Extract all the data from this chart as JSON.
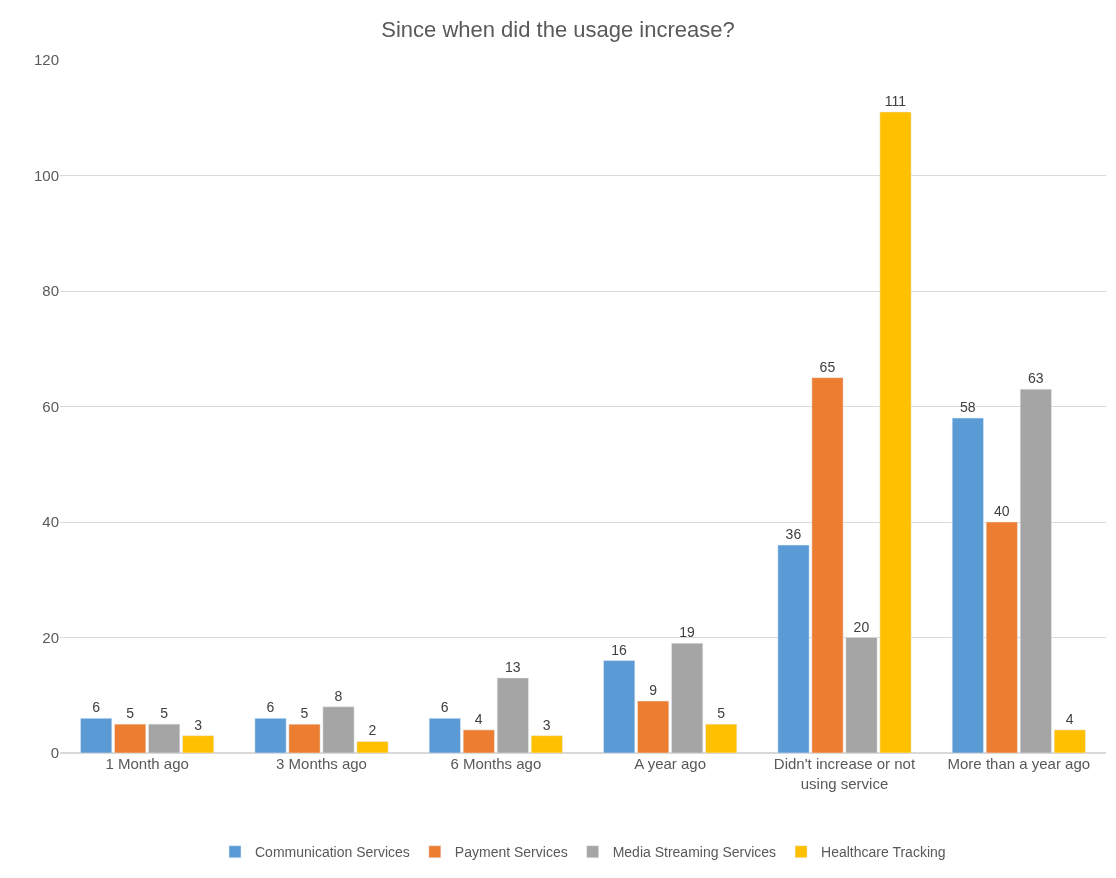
{
  "chart_data": {
    "type": "bar",
    "title": "Since when did the usage increase?",
    "categories": [
      "1 Month ago",
      "3 Months ago",
      "6 Months ago",
      "A year ago",
      "Didn't increase or not using service",
      "More than a year ago"
    ],
    "series": [
      {
        "name": "Communication Services",
        "color": "#5b9bd5",
        "values": [
          6,
          6,
          6,
          16,
          36,
          58
        ]
      },
      {
        "name": "Payment Services",
        "color": "#ed7d31",
        "values": [
          5,
          5,
          4,
          9,
          65,
          40
        ]
      },
      {
        "name": "Media Streaming Services",
        "color": "#a5a5a5",
        "values": [
          5,
          8,
          13,
          19,
          20,
          63
        ]
      },
      {
        "name": "Healthcare Tracking",
        "color": "#ffc000",
        "values": [
          3,
          2,
          3,
          5,
          111,
          4
        ]
      }
    ],
    "ylim": [
      0,
      120
    ],
    "yticks": [
      0,
      20,
      40,
      60,
      80,
      100,
      120
    ],
    "grid": "y",
    "legend": "bottom",
    "data_labels": true
  }
}
